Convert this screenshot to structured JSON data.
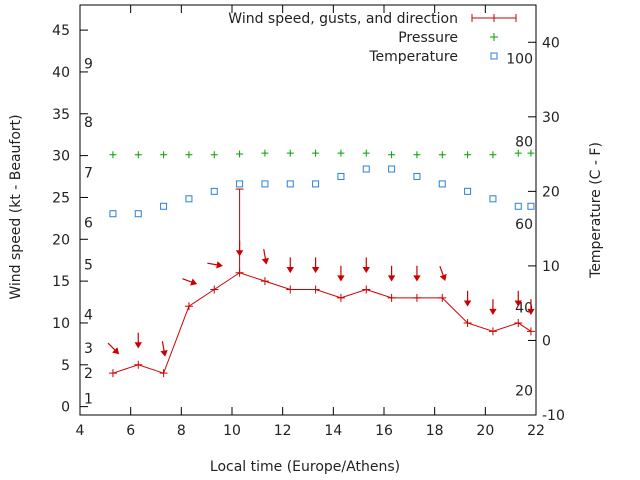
{
  "chart_data": {
    "type": "line",
    "xlabel": "Local time (Europe/Athens)",
    "ylabel_left": "Wind speed (kt - Beaufort)",
    "ylabel_right": "Temperature (C - F)",
    "xlim": [
      4,
      22
    ],
    "ylim_left": [
      -1,
      48
    ],
    "ylim_right": [
      -10,
      45
    ],
    "x_ticks": [
      4,
      6,
      8,
      10,
      12,
      14,
      16,
      18,
      20,
      22
    ],
    "y_left_ticks": [
      0,
      5,
      10,
      15,
      20,
      25,
      30,
      35,
      40,
      45
    ],
    "y_right_ticks": [
      -10,
      0,
      10,
      20,
      30,
      40
    ],
    "beaufort_scale": [
      {
        "label": "1",
        "kt": 1
      },
      {
        "label": "2",
        "kt": 4
      },
      {
        "label": "3",
        "kt": 7
      },
      {
        "label": "4",
        "kt": 11
      },
      {
        "label": "5",
        "kt": 17
      },
      {
        "label": "6",
        "kt": 22
      },
      {
        "label": "7",
        "kt": 28
      },
      {
        "label": "8",
        "kt": 34
      },
      {
        "label": "9",
        "kt": 41
      }
    ],
    "fahrenheit_scale": [
      {
        "label": "20",
        "temp_c": -6.7
      },
      {
        "label": "40",
        "temp_c": 4.4
      },
      {
        "label": "60",
        "temp_c": 15.6
      },
      {
        "label": "80",
        "temp_c": 26.7
      },
      {
        "label": "100",
        "temp_c": 37.8
      }
    ],
    "legend_position": "top-right",
    "grid": false,
    "series": [
      {
        "name": "Wind speed, gusts, and direction",
        "axis": "left",
        "color": "#cc0000",
        "x": [
          5.3,
          6.3,
          7.3,
          8.3,
          9.3,
          10.3,
          11.3,
          12.3,
          13.3,
          14.3,
          15.3,
          16.3,
          17.3,
          18.3,
          19.3,
          20.3,
          21.3,
          21.8
        ],
        "values": [
          4,
          5,
          4,
          12,
          14,
          16,
          15,
          14,
          14,
          13,
          14,
          13,
          13,
          13,
          10,
          9,
          10,
          9
        ],
        "gusts": [
          {
            "x": 10.3,
            "value": 26
          }
        ],
        "direction_deg": [
          315,
          0,
          350,
          290,
          280,
          0,
          350,
          0,
          0,
          0,
          0,
          0,
          0,
          340,
          0,
          0,
          0,
          0
        ]
      },
      {
        "name": "Pressure",
        "axis": "left",
        "color": "#00a000",
        "x": [
          5.3,
          6.3,
          7.3,
          8.3,
          9.3,
          10.3,
          11.3,
          12.3,
          13.3,
          14.3,
          15.3,
          16.3,
          17.3,
          18.3,
          19.3,
          20.3,
          21.3,
          21.8
        ],
        "values": [
          30.1,
          30.1,
          30.1,
          30.1,
          30.1,
          30.2,
          30.3,
          30.3,
          30.3,
          30.3,
          30.3,
          30.1,
          30.1,
          30.1,
          30.1,
          30.1,
          30.3,
          30.3
        ]
      },
      {
        "name": "Temperature",
        "axis": "right",
        "color": "#2b7fd8",
        "x": [
          5.3,
          6.3,
          7.3,
          8.3,
          9.3,
          10.3,
          11.3,
          12.3,
          13.3,
          14.3,
          15.3,
          16.3,
          17.3,
          18.3,
          19.3,
          20.3,
          21.3,
          21.8
        ],
        "values": [
          17,
          17,
          18,
          19,
          20,
          21,
          21,
          21,
          21,
          22,
          23,
          23,
          22,
          21,
          20,
          19,
          18,
          18
        ]
      }
    ]
  }
}
